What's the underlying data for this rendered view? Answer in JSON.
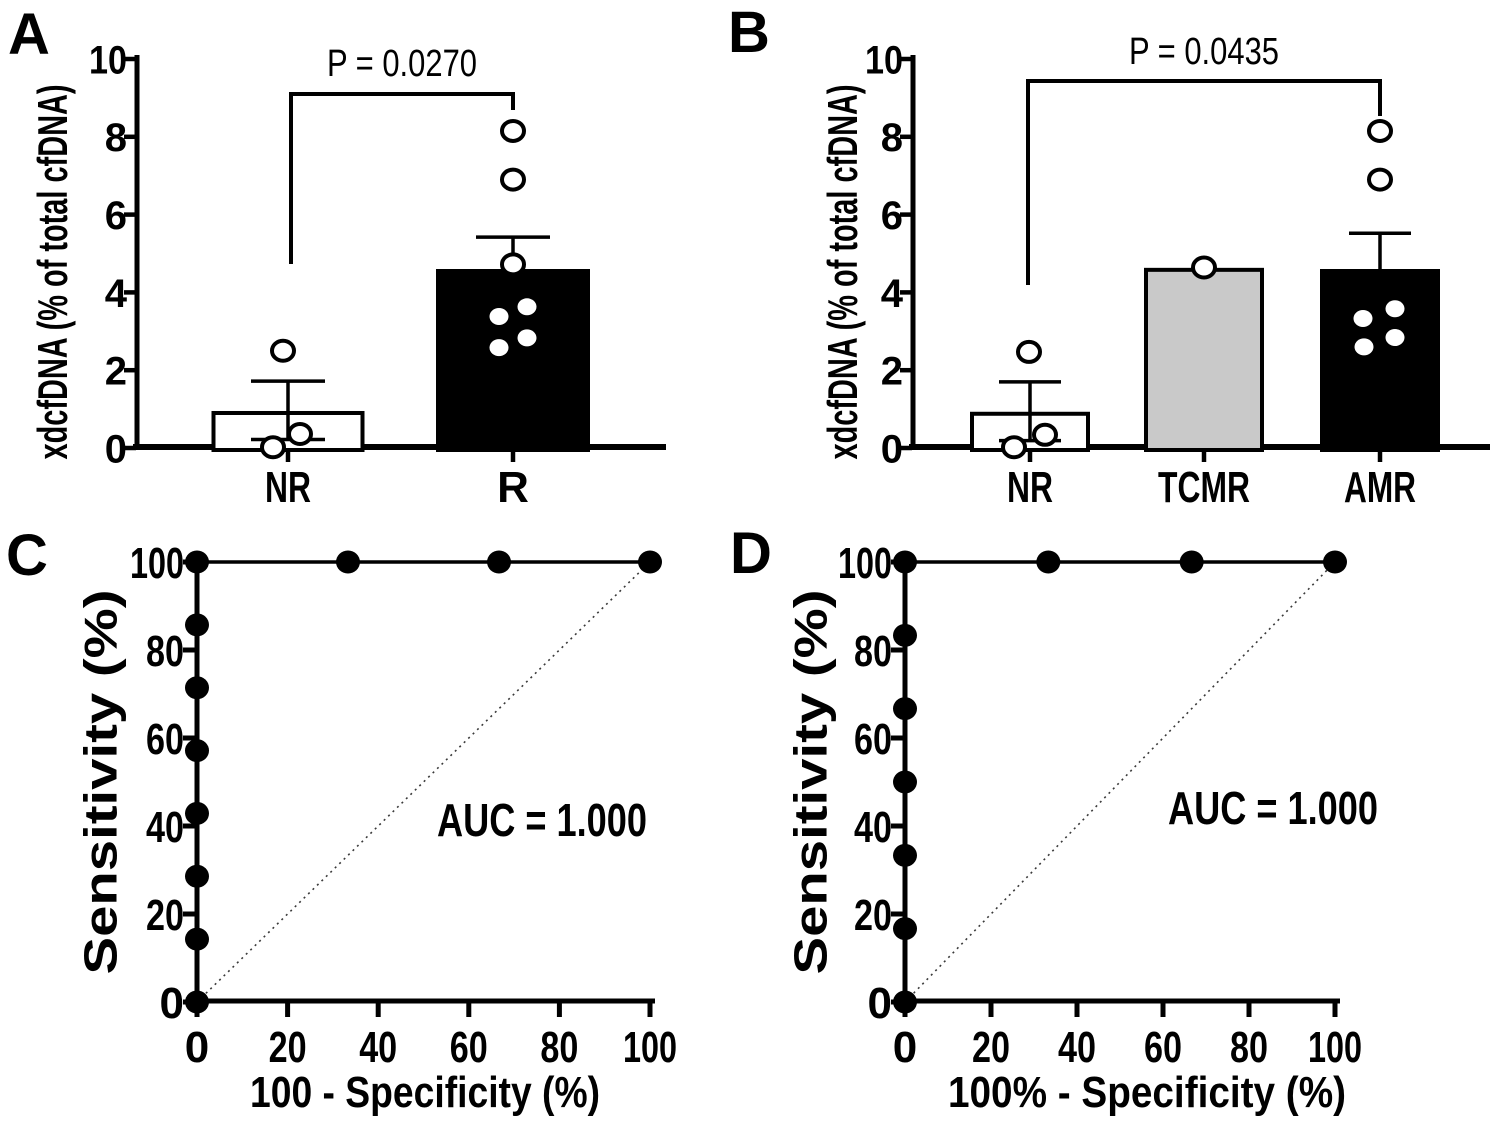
{
  "panels": {
    "A": {
      "letter": "A"
    },
    "B": {
      "letter": "B"
    },
    "C": {
      "letter": "C"
    },
    "D": {
      "letter": "D"
    }
  },
  "chart_data": [
    {
      "panel": "A",
      "type": "bar",
      "ylabel": "xdcfDNA (% of total cfDNA)",
      "ylim": [
        0,
        10
      ],
      "yticks": [
        0,
        2,
        4,
        6,
        8,
        10
      ],
      "categories": [
        "NR",
        "R"
      ],
      "series": [
        {
          "name": "NR",
          "mean": 0.9,
          "sem_low": 0.22,
          "sem_high": 1.72,
          "fill": "#ffffff",
          "open_points": [
            2.5,
            0.36,
            0.02
          ],
          "dot_points": []
        },
        {
          "name": "R",
          "mean": 4.55,
          "sem_high": 5.42,
          "fill": "#000000",
          "open_points": [
            8.15,
            6.9,
            4.72
          ],
          "dot_points": [
            3.63,
            3.38,
            2.83,
            2.58
          ]
        }
      ],
      "significance": {
        "label": "P = 0.0270",
        "from": "NR",
        "to": "R"
      }
    },
    {
      "panel": "B",
      "type": "bar",
      "ylabel": "xdcfDNA (% of total cfDNA)",
      "ylim": [
        0,
        10
      ],
      "yticks": [
        0,
        2,
        4,
        6,
        8,
        10
      ],
      "categories": [
        "NR",
        "TCMR",
        "AMR"
      ],
      "series": [
        {
          "name": "NR",
          "mean": 0.88,
          "sem_low": 0.19,
          "sem_high": 1.7,
          "fill": "#ffffff",
          "open_points": [
            2.47,
            0.34,
            0.02
          ],
          "dot_points": []
        },
        {
          "name": "TCMR",
          "mean": 4.58,
          "fill": "#c9c9c9",
          "open_points": [
            4.64
          ],
          "dot_points": []
        },
        {
          "name": "AMR",
          "mean": 4.55,
          "sem_high": 5.52,
          "fill": "#000000",
          "open_points": [
            8.15,
            6.9
          ],
          "dot_points": [
            3.58,
            3.33,
            2.84,
            2.6
          ]
        }
      ],
      "significance": {
        "label": "P = 0.0435",
        "from": "NR",
        "to": "AMR"
      }
    },
    {
      "panel": "C",
      "type": "line",
      "subtype": "roc",
      "xlabel": "100 - Specificity (%)",
      "ylabel": "Sensitivity (%)",
      "xlim": [
        0,
        100
      ],
      "ylim": [
        0,
        100
      ],
      "xticks": [
        0,
        20,
        40,
        60,
        80,
        100
      ],
      "yticks": [
        0,
        20,
        40,
        60,
        80,
        100
      ],
      "annotation": "AUC = 1.000",
      "points": [
        [
          0,
          0
        ],
        [
          0,
          14.29
        ],
        [
          0,
          28.57
        ],
        [
          0,
          42.86
        ],
        [
          0,
          57.14
        ],
        [
          0,
          71.43
        ],
        [
          0,
          85.71
        ],
        [
          0,
          100
        ],
        [
          33.33,
          100
        ],
        [
          66.67,
          100
        ],
        [
          100,
          100
        ]
      ],
      "diagonal": [
        [
          0,
          0
        ],
        [
          100,
          100
        ]
      ]
    },
    {
      "panel": "D",
      "type": "line",
      "subtype": "roc",
      "xlabel": "100% - Specificity (%)",
      "ylabel": "Sensitivity (%)",
      "xlim": [
        0,
        100
      ],
      "ylim": [
        0,
        100
      ],
      "xticks": [
        0,
        20,
        40,
        60,
        80,
        100
      ],
      "yticks": [
        0,
        20,
        40,
        60,
        80,
        100
      ],
      "annotation": "AUC = 1.000",
      "points": [
        [
          0,
          0
        ],
        [
          0,
          16.67
        ],
        [
          0,
          33.33
        ],
        [
          0,
          50
        ],
        [
          0,
          66.67
        ],
        [
          0,
          83.33
        ],
        [
          0,
          100
        ],
        [
          33.33,
          100
        ],
        [
          66.67,
          100
        ],
        [
          100,
          100
        ]
      ],
      "diagonal": [
        [
          0,
          0
        ],
        [
          100,
          100
        ]
      ]
    }
  ]
}
